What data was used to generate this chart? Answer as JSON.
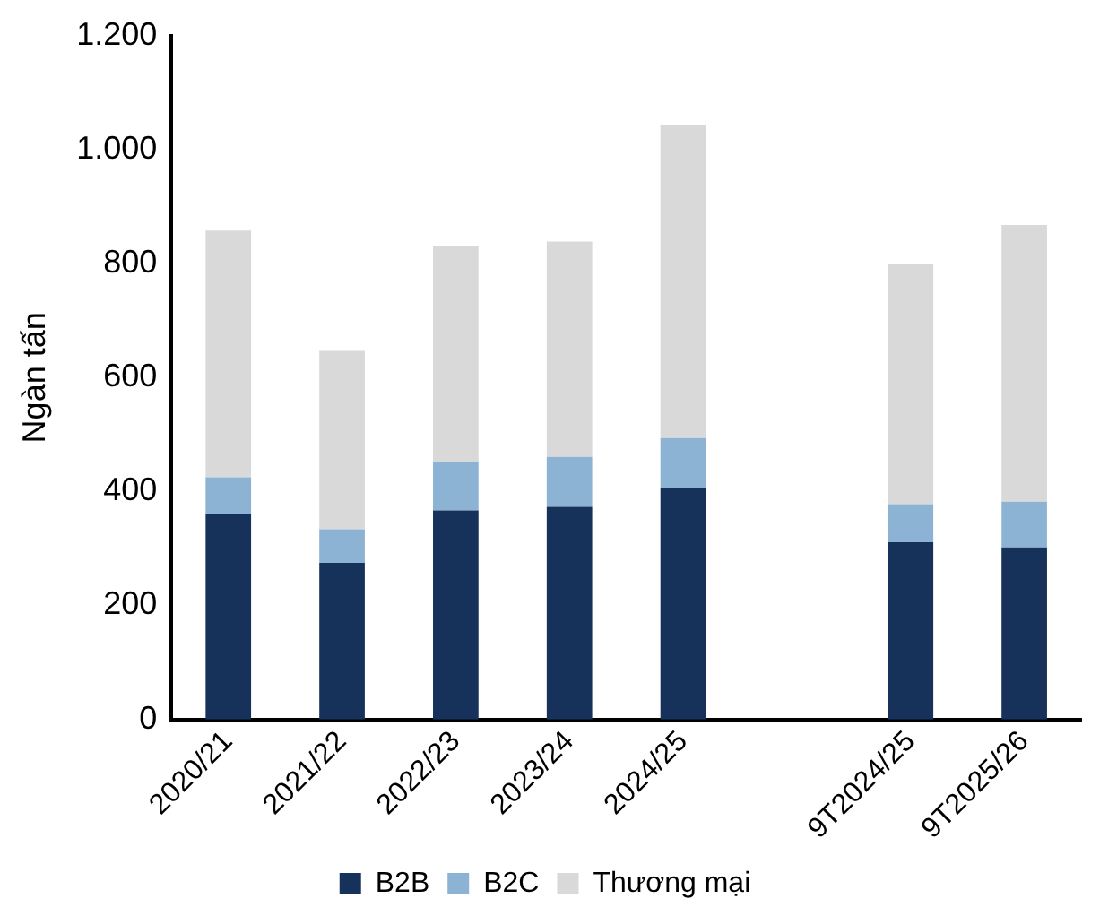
{
  "chart_data": {
    "type": "bar",
    "stacked": true,
    "ylabel": "Ngàn tấn",
    "categories": [
      "2020/21",
      "2021/22",
      "2022/23",
      "2023/24",
      "2024/25",
      null,
      "9T2024/25",
      "9T2025/26"
    ],
    "series": [
      {
        "name": "B2B",
        "color": "#17325a",
        "values": [
          360,
          275,
          367,
          373,
          406,
          null,
          311,
          302
        ]
      },
      {
        "name": "B2C",
        "color": "#8db3d4",
        "values": [
          65,
          59,
          85,
          88,
          88,
          null,
          67,
          80
        ]
      },
      {
        "name": "Thương mại",
        "color": "#d9d9d9",
        "values": [
          433,
          313,
          380,
          378,
          549,
          null,
          421,
          486
        ]
      }
    ],
    "ylim": [
      0,
      1200
    ],
    "yticks": [
      0,
      200,
      400,
      600,
      800,
      {
        "value": 1000,
        "label": "1.000"
      },
      {
        "value": 1200,
        "label": "1.200"
      }
    ],
    "grid": false,
    "legend": "bottom"
  }
}
